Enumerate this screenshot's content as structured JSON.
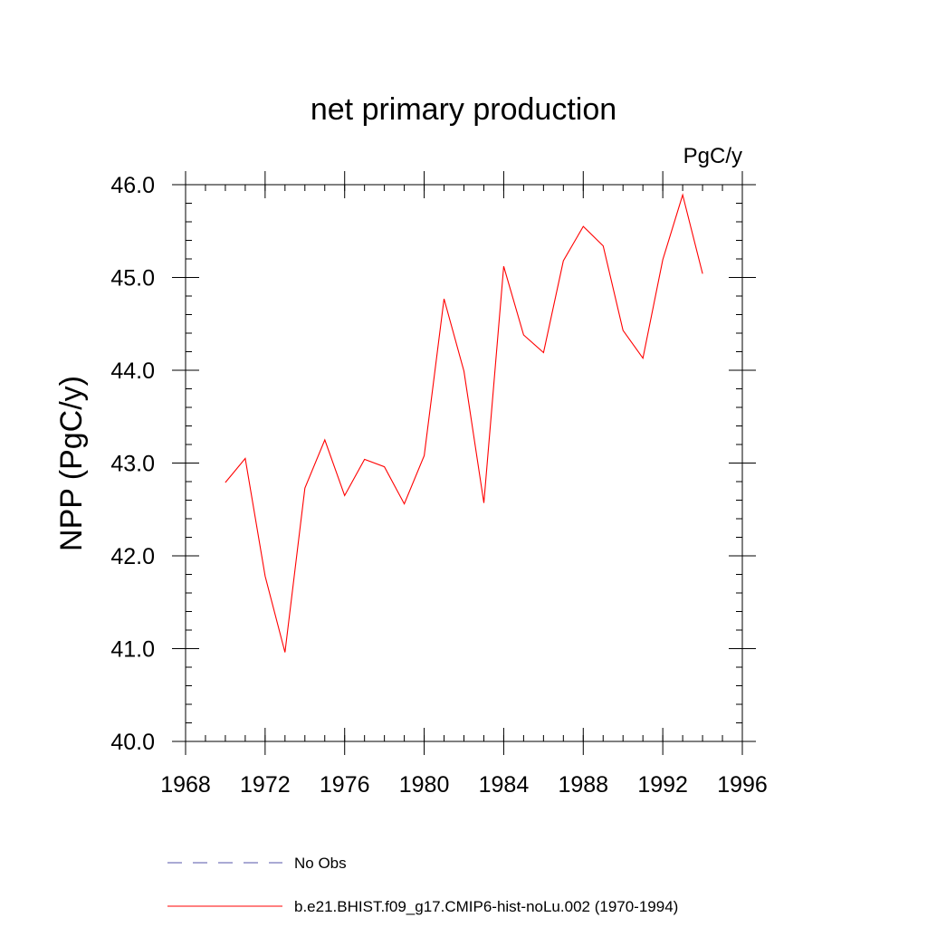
{
  "chart_data": {
    "type": "line",
    "title": "net primary production",
    "units": "PgC/y",
    "ylabel": "NPP  (PgC/y)",
    "xlabel": "",
    "xlim": [
      1968,
      1996
    ],
    "ylim": [
      40.0,
      46.0
    ],
    "xticks": [
      "1968",
      "1972",
      "1976",
      "1980",
      "1984",
      "1988",
      "1992",
      "1996"
    ],
    "yticks": [
      "40.0",
      "41.0",
      "42.0",
      "43.0",
      "44.0",
      "45.0",
      "46.0"
    ],
    "grid": false,
    "legend_position": "bottom",
    "series": [
      {
        "name": "b.e21.BHIST.f09_g17.CMIP6-hist-noLu.002 (1970-1994)",
        "color": "#ff0000",
        "style": "solid",
        "x": [
          1970,
          1971,
          1972,
          1973,
          1974,
          1975,
          1976,
          1977,
          1978,
          1979,
          1980,
          1981,
          1982,
          1983,
          1984,
          1985,
          1986,
          1987,
          1988,
          1989,
          1990,
          1991,
          1992,
          1993,
          1994
        ],
        "y": [
          42.79,
          43.05,
          41.78,
          40.96,
          42.73,
          43.25,
          42.65,
          43.04,
          42.96,
          42.56,
          43.08,
          44.77,
          43.99,
          42.57,
          45.12,
          44.38,
          44.19,
          45.18,
          45.55,
          45.34,
          44.43,
          44.13,
          45.19,
          45.89,
          45.04
        ]
      }
    ],
    "legend": [
      {
        "label": "No Obs",
        "color": "#5555aa",
        "style": "dashed"
      },
      {
        "label": "b.e21.BHIST.f09_g17.CMIP6-hist-noLu.002 (1970-1994)",
        "color": "#ff0000",
        "style": "solid"
      }
    ]
  }
}
